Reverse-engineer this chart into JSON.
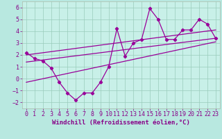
{
  "xlabel": "Windchill (Refroidissement éolien,°C)",
  "background_color": "#b8e8e0",
  "plot_bg_color": "#c8f0e8",
  "grid_color": "#99ccbb",
  "line_color": "#990099",
  "xlim": [
    -0.5,
    23.5
  ],
  "ylim": [
    -2.5,
    6.5
  ],
  "xticks": [
    0,
    1,
    2,
    3,
    4,
    5,
    6,
    7,
    8,
    9,
    10,
    11,
    12,
    13,
    14,
    15,
    16,
    17,
    18,
    19,
    20,
    21,
    22,
    23
  ],
  "yticks": [
    -2,
    -1,
    0,
    1,
    2,
    3,
    4,
    5,
    6
  ],
  "main_x": [
    0,
    1,
    2,
    3,
    4,
    5,
    6,
    7,
    8,
    9,
    10,
    11,
    12,
    13,
    14,
    15,
    16,
    17,
    18,
    19,
    20,
    21,
    22,
    23
  ],
  "main_y": [
    2.2,
    1.7,
    1.5,
    0.9,
    -0.3,
    -1.2,
    -1.8,
    -1.2,
    -1.2,
    -0.3,
    1.0,
    4.2,
    1.9,
    3.0,
    3.3,
    5.9,
    5.0,
    3.3,
    3.3,
    4.1,
    4.1,
    5.0,
    4.6,
    3.4
  ],
  "upper_line_x": [
    0,
    23
  ],
  "upper_line_y": [
    2.0,
    4.1
  ],
  "mid_line_x": [
    0,
    23
  ],
  "mid_line_y": [
    1.4,
    3.4
  ],
  "bottom_line_x": [
    0,
    23
  ],
  "bottom_line_y": [
    -0.3,
    3.1
  ],
  "tick_fontsize": 6,
  "label_fontsize": 6.5
}
